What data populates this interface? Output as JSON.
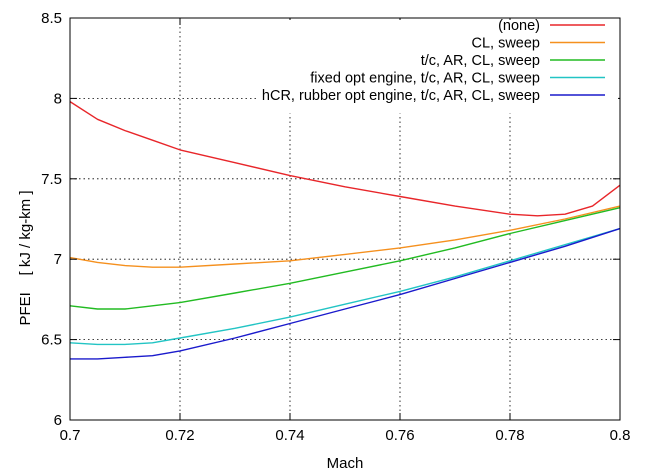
{
  "chart_data": {
    "type": "line",
    "xlabel": "Mach",
    "ylabel": "PFEI    [ kJ / kg-km ]",
    "xlim": [
      0.7,
      0.8
    ],
    "ylim": [
      6.0,
      8.5
    ],
    "xticks": [
      "0.7",
      "0.72",
      "0.74",
      "0.76",
      "0.78",
      "0.8"
    ],
    "yticks": [
      "6",
      "6.5",
      "7",
      "7.5",
      "8",
      "8.5"
    ],
    "xtick_values": [
      0.7,
      0.72,
      0.74,
      0.76,
      0.78,
      0.8
    ],
    "ytick_values": [
      6.0,
      6.5,
      7.0,
      7.5,
      8.0,
      8.5
    ],
    "grid": true,
    "legend_position": "top-right",
    "series": [
      {
        "name": "(none)",
        "color": "#e8262a",
        "x": [
          0.7,
          0.705,
          0.71,
          0.715,
          0.72,
          0.73,
          0.74,
          0.75,
          0.76,
          0.77,
          0.78,
          0.785,
          0.79,
          0.795,
          0.8
        ],
        "y": [
          7.98,
          7.87,
          7.8,
          7.74,
          7.68,
          7.6,
          7.52,
          7.45,
          7.39,
          7.33,
          7.28,
          7.27,
          7.28,
          7.33,
          7.46
        ]
      },
      {
        "name": "CL, sweep",
        "color": "#f5901e",
        "x": [
          0.7,
          0.705,
          0.71,
          0.715,
          0.72,
          0.73,
          0.74,
          0.75,
          0.76,
          0.77,
          0.78,
          0.79,
          0.8
        ],
        "y": [
          7.01,
          6.98,
          6.96,
          6.95,
          6.95,
          6.97,
          6.99,
          7.03,
          7.07,
          7.12,
          7.18,
          7.25,
          7.33
        ]
      },
      {
        "name": "t/c, AR, CL, sweep",
        "color": "#22bb22",
        "x": [
          0.7,
          0.705,
          0.71,
          0.715,
          0.72,
          0.73,
          0.74,
          0.75,
          0.76,
          0.77,
          0.78,
          0.79,
          0.8
        ],
        "y": [
          6.71,
          6.69,
          6.69,
          6.71,
          6.73,
          6.79,
          6.85,
          6.92,
          6.99,
          7.07,
          7.16,
          7.24,
          7.32
        ]
      },
      {
        "name": "fixed opt engine, t/c, AR, CL, sweep",
        "color": "#22c4c4",
        "x": [
          0.7,
          0.705,
          0.71,
          0.715,
          0.72,
          0.73,
          0.74,
          0.75,
          0.76,
          0.77,
          0.78,
          0.79,
          0.8
        ],
        "y": [
          6.48,
          6.47,
          6.47,
          6.48,
          6.51,
          6.57,
          6.64,
          6.72,
          6.8,
          6.89,
          6.99,
          7.09,
          7.19
        ]
      },
      {
        "name": "hCR, rubber opt engine, t/c, AR, CL, sweep",
        "color": "#1a1acc",
        "x": [
          0.7,
          0.705,
          0.71,
          0.715,
          0.72,
          0.73,
          0.74,
          0.75,
          0.76,
          0.77,
          0.78,
          0.79,
          0.8
        ],
        "y": [
          6.38,
          6.38,
          6.39,
          6.4,
          6.43,
          6.51,
          6.6,
          6.69,
          6.78,
          6.88,
          6.98,
          7.08,
          7.19
        ]
      }
    ]
  }
}
